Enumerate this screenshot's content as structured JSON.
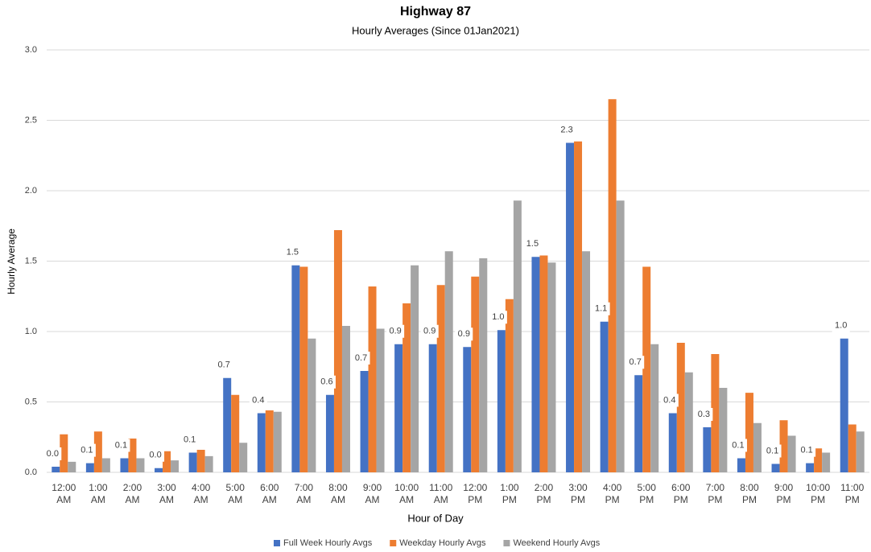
{
  "chart_data": {
    "type": "bar",
    "title": "Highway 87",
    "subtitle": "Hourly Averages (Since 01Jan2021)",
    "x_label": "Hour of Day",
    "y_label": "Hourly Average",
    "categories": [
      "12:00 AM",
      "1:00 AM",
      "2:00 AM",
      "3:00 AM",
      "4:00 AM",
      "5:00 AM",
      "6:00 AM",
      "7:00 AM",
      "8:00 AM",
      "9:00 AM",
      "10:00 AM",
      "11:00 AM",
      "12:00 PM",
      "1:00 PM",
      "2:00 PM",
      "3:00 PM",
      "4:00 PM",
      "5:00 PM",
      "6:00 PM",
      "7:00 PM",
      "8:00 PM",
      "9:00 PM",
      "10:00 PM",
      "11:00 PM"
    ],
    "series": [
      {
        "name": "Full Week Hourly Avgs",
        "color": "#4472c4",
        "values": [
          0.04,
          0.065,
          0.1,
          0.03,
          0.14,
          0.67,
          0.42,
          1.47,
          0.55,
          0.72,
          0.91,
          0.91,
          0.89,
          1.01,
          1.53,
          2.34,
          1.07,
          0.69,
          0.42,
          0.32,
          0.1,
          0.06,
          0.065,
          0.95
        ],
        "value_labels": [
          "0.0",
          "0.1",
          "0.1",
          "0.0",
          "0.1",
          "0.7",
          "0.4",
          "1.5",
          "0.6",
          "0.7",
          "0.9",
          "0.9",
          "0.9",
          "1.0",
          "1.5",
          "2.3",
          "1.1",
          "0.7",
          "0.4",
          "0.3",
          "0.1",
          "0.1",
          "0.1",
          "1.0"
        ]
      },
      {
        "name": "Weekday Hourly Avgs",
        "color": "#ed7d31",
        "values": [
          0.27,
          0.29,
          0.24,
          0.15,
          0.16,
          0.55,
          0.44,
          1.46,
          1.72,
          1.32,
          1.2,
          1.33,
          1.39,
          1.23,
          1.54,
          2.35,
          2.65,
          1.46,
          0.92,
          0.84,
          0.565,
          0.37,
          0.17,
          0.34
        ]
      },
      {
        "name": "Weekend Hourly Avgs",
        "color": "#a5a5a5",
        "values": [
          0.075,
          0.1,
          0.1,
          0.085,
          0.115,
          0.21,
          0.43,
          0.95,
          1.04,
          1.02,
          1.47,
          1.57,
          1.52,
          1.93,
          1.49,
          1.57,
          1.93,
          0.91,
          0.71,
          0.6,
          0.35,
          0.26,
          0.14,
          0.29
        ]
      }
    ],
    "ylim": [
      0,
      3
    ],
    "yticks": [
      {
        "value": 0,
        "label": "0.0"
      },
      {
        "value": 0.5,
        "label": "0.5"
      },
      {
        "value": 1,
        "label": "1.0"
      },
      {
        "value": 1.5,
        "label": "1.5"
      },
      {
        "value": 2,
        "label": "2.0"
      },
      {
        "value": 2.5,
        "label": "2.5"
      },
      {
        "value": 3,
        "label": "3.0"
      }
    ],
    "grid": true,
    "legend": "bottom"
  }
}
